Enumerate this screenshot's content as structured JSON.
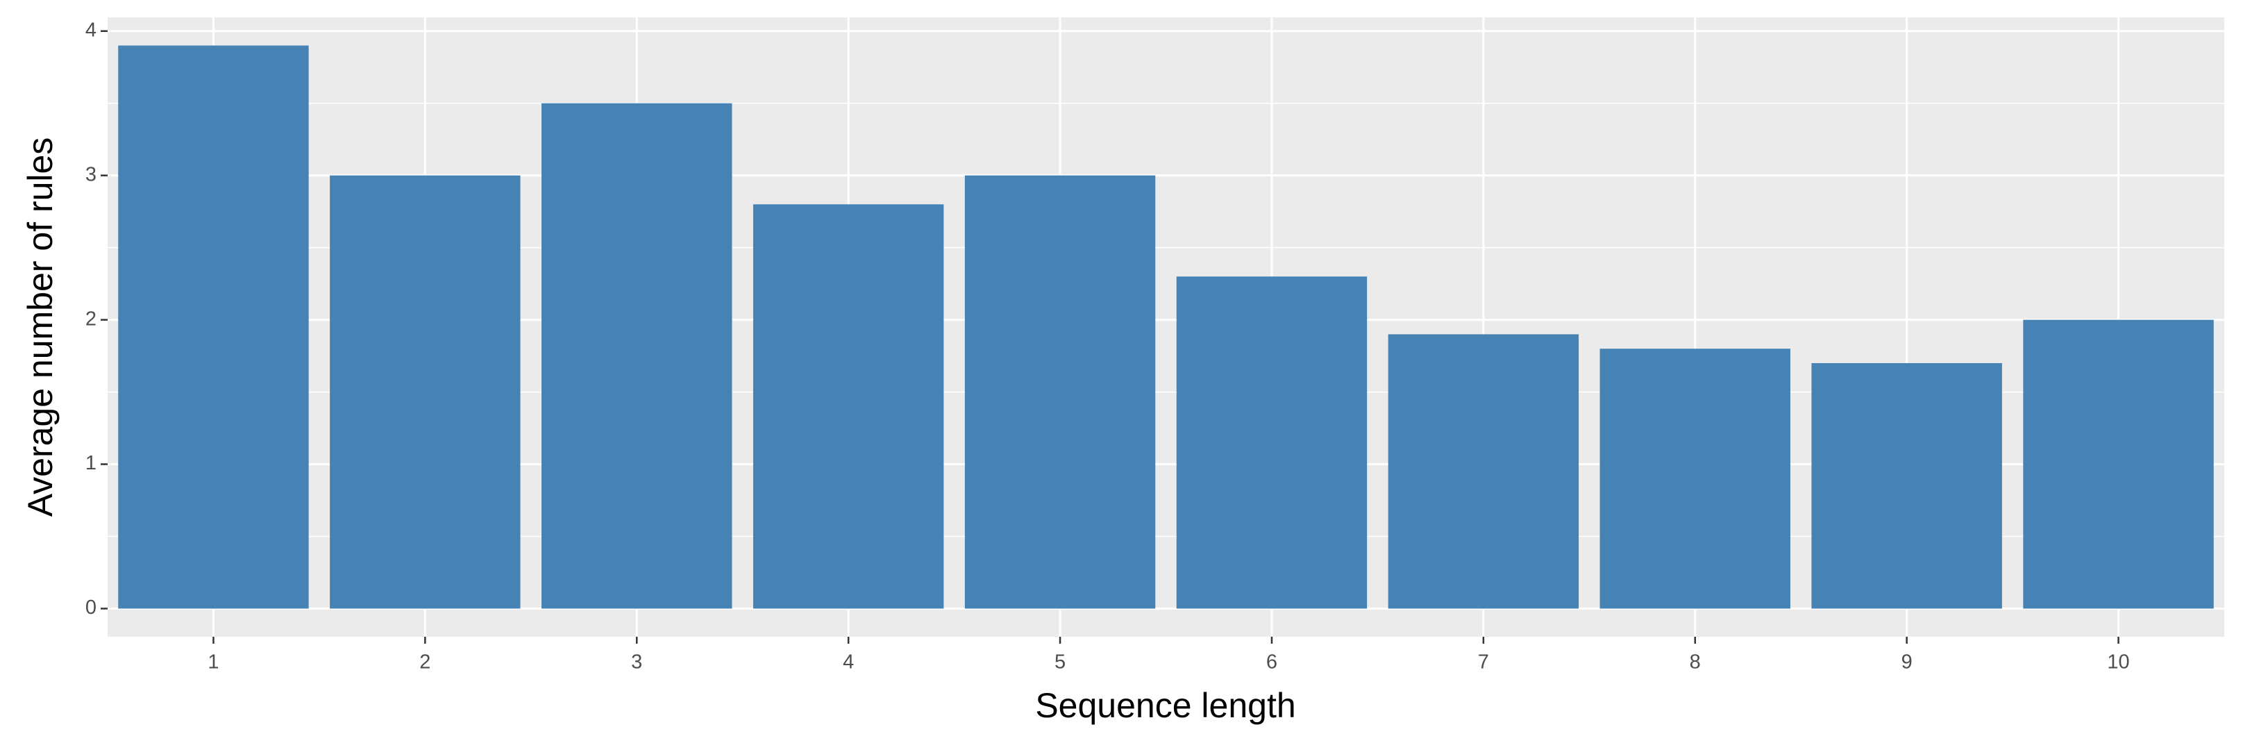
{
  "chart_data": {
    "type": "bar",
    "x_label": "Sequence length",
    "y_label": "Average number of rules",
    "categories": [
      "1",
      "2",
      "3",
      "4",
      "5",
      "6",
      "7",
      "8",
      "9",
      "10"
    ],
    "values": [
      3.9,
      3.0,
      3.5,
      2.8,
      3.0,
      2.3,
      1.9,
      1.8,
      1.7,
      2.0
    ],
    "color": "#4682b4",
    "ylim": [
      -0.195,
      4.095
    ],
    "yticks": [
      0,
      1,
      2,
      3,
      4
    ],
    "grid": true
  }
}
